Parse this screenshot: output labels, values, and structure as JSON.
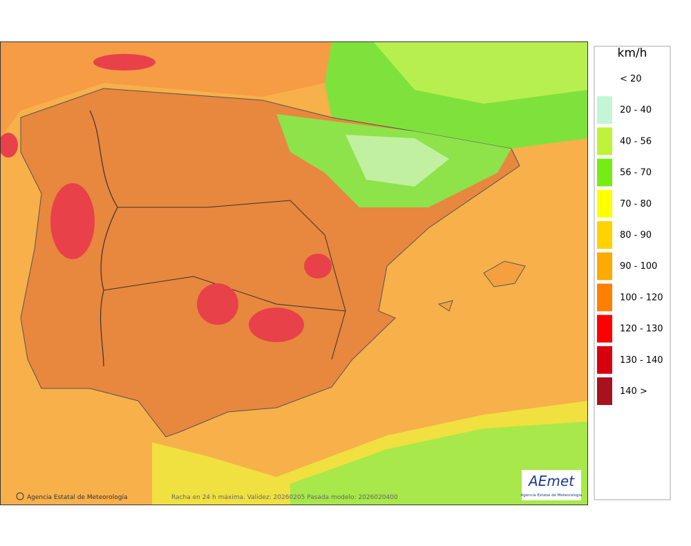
{
  "legend": {
    "unit": "km/h",
    "items": [
      {
        "label": "< 20",
        "color": "#ffffff"
      },
      {
        "label": "20 - 40",
        "color": "#c4f5d4"
      },
      {
        "label": "40 - 56",
        "color": "#bff23a"
      },
      {
        "label": "56 - 70",
        "color": "#76ec14"
      },
      {
        "label": "70 - 80",
        "color": "#ffff00"
      },
      {
        "label": "80 - 90",
        "color": "#ffd200"
      },
      {
        "label": "90 - 100",
        "color": "#ffaa00"
      },
      {
        "label": "100 - 120",
        "color": "#ff8000"
      },
      {
        "label": "120 - 130",
        "color": "#ff0000"
      },
      {
        "label": "130 - 140",
        "color": "#d8000e"
      },
      {
        "label": "140 >",
        "color": "#a8121e"
      }
    ]
  },
  "map": {
    "credit": "Agencia Estatal de Meteorología",
    "caption": "Racha en 24 h máxima. Validez: 20260205 Pasada modelo: 2026020400",
    "logo": {
      "name": "AEmet",
      "subtitle": "Agencia Estatal de Meteorología"
    }
  }
}
